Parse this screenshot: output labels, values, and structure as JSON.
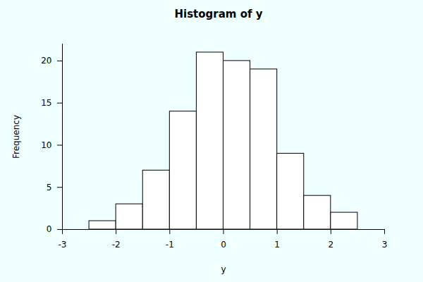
{
  "chart_data": {
    "type": "histogram",
    "title": "Histogram of y",
    "x_label": "y",
    "y_label": "Frequency",
    "bins": [
      -2.5,
      -2,
      -1.5,
      -1,
      -0.5,
      0,
      0.5,
      1,
      1.5,
      2,
      2.5
    ],
    "values": [
      1,
      3,
      7,
      14,
      21,
      20,
      19,
      9,
      4,
      2
    ],
    "color": "#ffffff",
    "xlim": [
      -3,
      3
    ],
    "ylim": [
      0,
      22
    ],
    "xticks": [
      -3,
      -2,
      -1,
      0,
      1,
      2,
      3
    ],
    "yticks": [
      0,
      5,
      10,
      15,
      20
    ],
    "grid": false
  }
}
